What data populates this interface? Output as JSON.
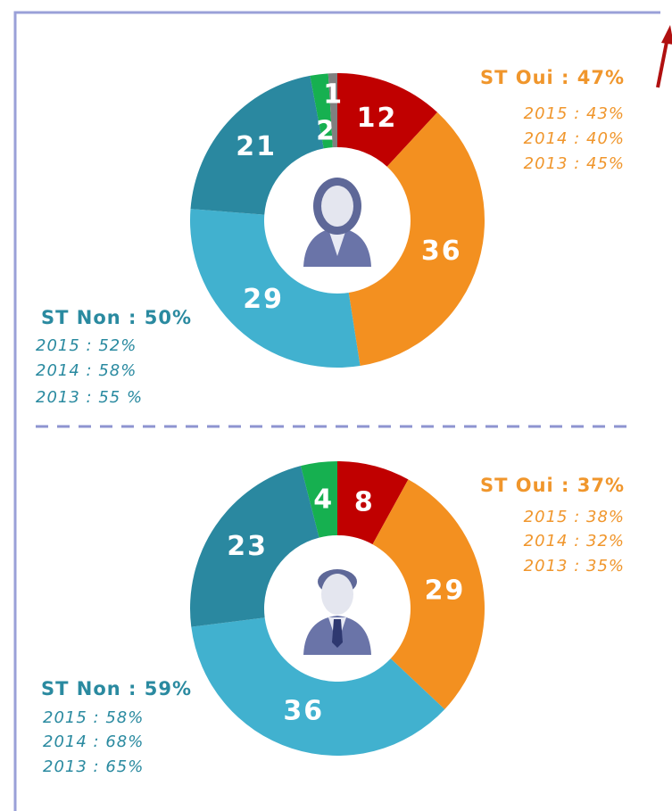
{
  "chart_data": [
    {
      "type": "donut",
      "values": [
        12,
        36,
        29,
        21,
        2,
        1
      ],
      "colors": [
        "#c00000",
        "#f39020",
        "#41b1cf",
        "#2a88a0",
        "#16b050",
        "#808080"
      ],
      "oui": {
        "title": "ST Oui : 47%",
        "color": "#f0962c",
        "history": [
          "2015 : 43%",
          "2014 : 40%",
          "2013 : 45%"
        ]
      },
      "non": {
        "title": "ST Non : 50%",
        "color": "#2a8aa0",
        "history": [
          "2015 : 52%",
          "2014 : 58%",
          "2013 : 55 %"
        ]
      }
    },
    {
      "type": "donut",
      "values": [
        8,
        29,
        36,
        23,
        4
      ],
      "colors": [
        "#c00000",
        "#f39020",
        "#41b1cf",
        "#2a88a0",
        "#16b050"
      ],
      "oui": {
        "title": "ST Oui : 37%",
        "color": "#f0962c",
        "history": [
          "2015 : 38%",
          "2014 : 32%",
          "2013 : 35%"
        ]
      },
      "non": {
        "title": "ST Non : 59%",
        "color": "#2a8aa0",
        "history": [
          "2015 : 58%",
          "2014 : 68%",
          "2013 : 65%"
        ]
      }
    }
  ]
}
